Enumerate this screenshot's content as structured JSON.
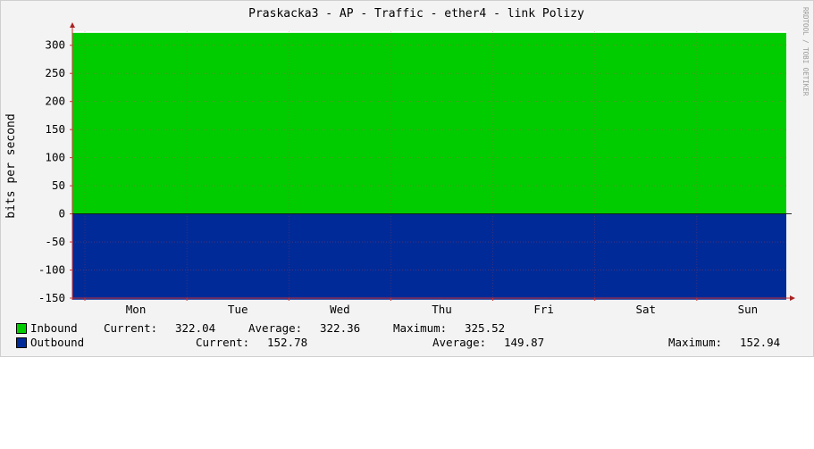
{
  "chart_data": {
    "type": "area",
    "title": "Praskacka3 - AP - Traffic - ether4 - link Polizy",
    "ylabel": "bits per second",
    "xlabel": "",
    "watermark": "RRDTOOL / TOBI OETIKER",
    "ylim": [
      -150,
      325
    ],
    "yticks": [
      300,
      250,
      200,
      150,
      100,
      50,
      0,
      -50,
      -100,
      -150
    ],
    "categories": [
      "Mon",
      "Tue",
      "Wed",
      "Thu",
      "Fri",
      "Sat",
      "Sun"
    ],
    "grid": true,
    "series": [
      {
        "name": "Inbound",
        "color": "#00cc00",
        "value": 322.04,
        "sign": 1
      },
      {
        "name": "Outbound",
        "color": "#002a97",
        "value": 152.78,
        "sign": -1
      }
    ]
  },
  "legend": {
    "inbound": {
      "name": "Inbound",
      "current_label": "Current:",
      "current": "322.04",
      "average_label": "Average:",
      "average": "322.36",
      "maximum_label": "Maximum:",
      "maximum": "325.52"
    },
    "outbound": {
      "name": "Outbound",
      "current_label": "Current:",
      "current": "152.78",
      "average_label": "Average:",
      "average": "149.87",
      "maximum_label": "Maximum:",
      "maximum": "152.94"
    }
  }
}
